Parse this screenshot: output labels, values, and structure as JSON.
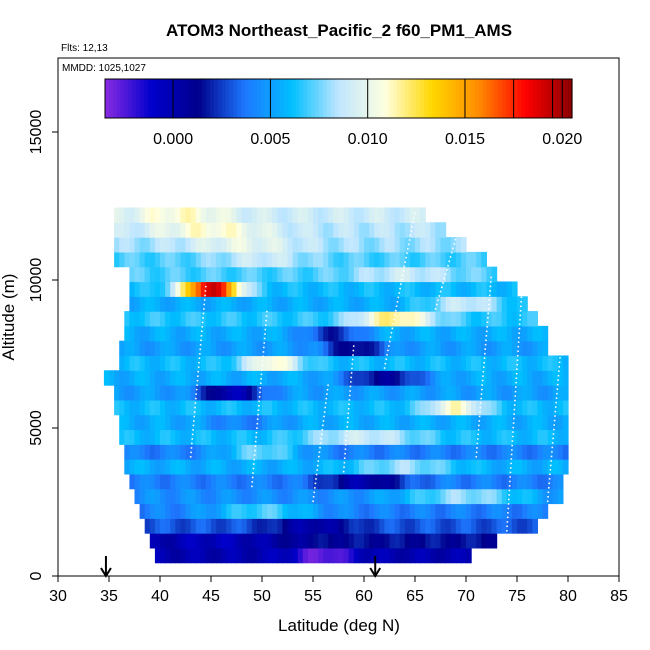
{
  "chart_data": {
    "type": "heatmap",
    "title": "ATOM3 Northeast_Pacific_2 f60_PM1_AMS",
    "flights_label": "Flts: 12,13",
    "date_label": "MMDD: 1025,1027",
    "xlabel": "Latitude (deg N)",
    "ylabel": "Altitude (m)",
    "xlim": [
      30,
      85
    ],
    "ylim": [
      0,
      17500
    ],
    "x_ticks": [
      "30",
      "35",
      "40",
      "45",
      "50",
      "55",
      "60",
      "65",
      "70",
      "75",
      "80",
      "85"
    ],
    "y_ticks": [
      "0",
      "5000",
      "10000",
      "15000"
    ],
    "colorbar": {
      "range": [
        -0.0035,
        0.0205
      ],
      "ticks": [
        "0.000",
        "0.005",
        "0.010",
        "0.015",
        "0.020"
      ],
      "colors": [
        "#8a2be2",
        "#0000cd",
        "#00008b",
        "#1e78ff",
        "#00bfff",
        "#bfe6ff",
        "#ffffe0",
        "#ffd700",
        "#ff8c00",
        "#ff0000",
        "#8b0000"
      ]
    },
    "arrows_latitude": [
      34.7,
      61.1
    ],
    "bands": [
      {
        "alt": 700,
        "lat_min": 39.5,
        "lat_max": 70.5,
        "base": 0.0,
        "hot": {
          "lat": 56,
          "width": 3,
          "value": -0.003
        }
      },
      {
        "alt": 1200,
        "lat_min": 39.0,
        "lat_max": 73.0,
        "base": 0.0015,
        "hot": {
          "lat": 45,
          "width": 8,
          "value": -0.0005
        }
      },
      {
        "alt": 1700,
        "lat_min": 38.5,
        "lat_max": 77.0,
        "base": 0.003,
        "hot": {
          "lat": 55,
          "width": 4,
          "value": 0.0
        }
      },
      {
        "alt": 2200,
        "lat_min": 38.0,
        "lat_max": 78.0,
        "base": 0.004,
        "hot": {
          "lat": 50,
          "width": 5,
          "value": 0.007
        }
      },
      {
        "alt": 2700,
        "lat_min": 37.5,
        "lat_max": 79.5,
        "base": 0.0045,
        "hot": {
          "lat": 70,
          "width": 6,
          "value": 0.008
        }
      },
      {
        "alt": 3200,
        "lat_min": 37.0,
        "lat_max": 79.5,
        "base": 0.004,
        "hot": {
          "lat": 60,
          "width": 4,
          "value": 0.0
        }
      },
      {
        "alt": 3700,
        "lat_min": 36.5,
        "lat_max": 80.0,
        "base": 0.0055,
        "hot": {
          "lat": 64,
          "width": 5,
          "value": 0.008
        }
      },
      {
        "alt": 4200,
        "lat_min": 36.5,
        "lat_max": 80.0,
        "base": 0.004,
        "hot": {
          "lat": 50,
          "width": 4,
          "value": 0.0075
        }
      },
      {
        "alt": 4700,
        "lat_min": 36.0,
        "lat_max": 80.0,
        "base": 0.006,
        "hot": {
          "lat": 60,
          "width": 6,
          "value": 0.009
        }
      },
      {
        "alt": 5200,
        "lat_min": 36.0,
        "lat_max": 80.0,
        "base": 0.0055,
        "hot": {
          "lat": 48,
          "width": 4,
          "value": 0.004
        }
      },
      {
        "alt": 5700,
        "lat_min": 35.5,
        "lat_max": 80.0,
        "base": 0.006,
        "hot": {
          "lat": 69,
          "width": 3,
          "value": 0.011
        }
      },
      {
        "alt": 6200,
        "lat_min": 35.5,
        "lat_max": 80.0,
        "base": 0.005,
        "hot": {
          "lat": 47,
          "width": 3,
          "value": -0.0005
        }
      },
      {
        "alt": 6700,
        "lat_min": 34.5,
        "lat_max": 80.0,
        "base": 0.0055,
        "hot": {
          "lat": 62,
          "width": 4,
          "value": 0.001
        }
      },
      {
        "alt": 7200,
        "lat_min": 36.0,
        "lat_max": 80.0,
        "base": 0.006,
        "hot": {
          "lat": 51,
          "width": 3,
          "value": 0.011
        }
      },
      {
        "alt": 7700,
        "lat_min": 36.0,
        "lat_max": 78.0,
        "base": 0.005,
        "hot": {
          "lat": 59,
          "width": 3,
          "value": 0.001
        }
      },
      {
        "alt": 8200,
        "lat_min": 36.5,
        "lat_max": 78.0,
        "base": 0.0055,
        "hot": {
          "lat": 57,
          "width": 3,
          "value": 0.002
        }
      },
      {
        "alt": 8700,
        "lat_min": 36.5,
        "lat_max": 77.0,
        "base": 0.0065,
        "hot": {
          "lat": 63,
          "width": 4,
          "value": 0.012
        }
      },
      {
        "alt": 9200,
        "lat_min": 37.0,
        "lat_max": 76.0,
        "base": 0.0055,
        "hot": {
          "lat": 70,
          "width": 4,
          "value": 0.009
        }
      },
      {
        "alt": 9700,
        "lat_min": 37.0,
        "lat_max": 75.0,
        "base": 0.006,
        "hot": {
          "lat": 45,
          "width": 3,
          "value": 0.019
        }
      },
      {
        "alt": 10200,
        "lat_min": 37.0,
        "lat_max": 73.0,
        "base": 0.007,
        "hot": {
          "lat": 64,
          "width": 5,
          "value": 0.009
        }
      },
      {
        "alt": 10700,
        "lat_min": 35.5,
        "lat_max": 72.0,
        "base": 0.007,
        "hot": {
          "lat": 50,
          "width": 5,
          "value": 0.009
        }
      },
      {
        "alt": 11200,
        "lat_min": 35.5,
        "lat_max": 70.0,
        "base": 0.008,
        "hot": {
          "lat": 48,
          "width": 6,
          "value": 0.01
        }
      },
      {
        "alt": 11700,
        "lat_min": 35.5,
        "lat_max": 68.0,
        "base": 0.0085,
        "hot": {
          "lat": 45,
          "width": 6,
          "value": 0.011
        }
      },
      {
        "alt": 12200,
        "lat_min": 35.5,
        "lat_max": 66.0,
        "base": 0.009,
        "hot": {
          "lat": 42,
          "width": 5,
          "value": 0.011
        }
      }
    ]
  }
}
